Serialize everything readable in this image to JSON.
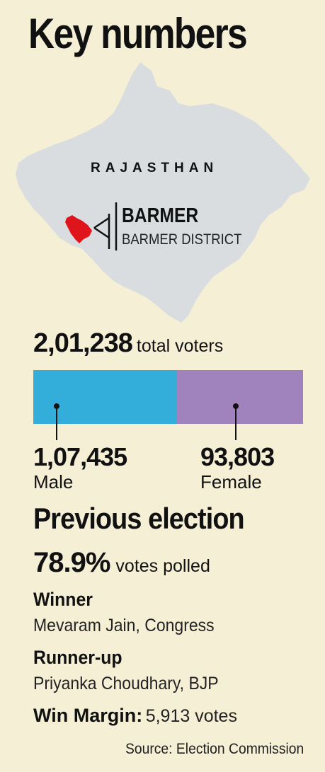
{
  "title": "Key numbers",
  "map": {
    "state": "RAJASTHAN",
    "constituency": "BARMER",
    "district": "BARMER DISTRICT",
    "state_color": "#d9dde0",
    "highlight_color": "#e0141b"
  },
  "voters": {
    "total": "2,01,238",
    "total_label": "total voters",
    "male": "1,07,435",
    "male_label": "Male",
    "male_fraction": 0.534,
    "male_color": "#33aedb",
    "female": "93,803",
    "female_label": "Female",
    "female_fraction": 0.466,
    "female_color": "#a083bd"
  },
  "previous": {
    "heading": "Previous election",
    "turnout": "78.9%",
    "turnout_label": "votes polled",
    "winner_label": "Winner",
    "winner": "Mevaram Jain, Congress",
    "runner_label": "Runner-up",
    "runner": "Priyanka Choudhary, BJP",
    "margin_label": "Win Margin:",
    "margin": "5,913 votes"
  },
  "source": "Source: Election Commission"
}
